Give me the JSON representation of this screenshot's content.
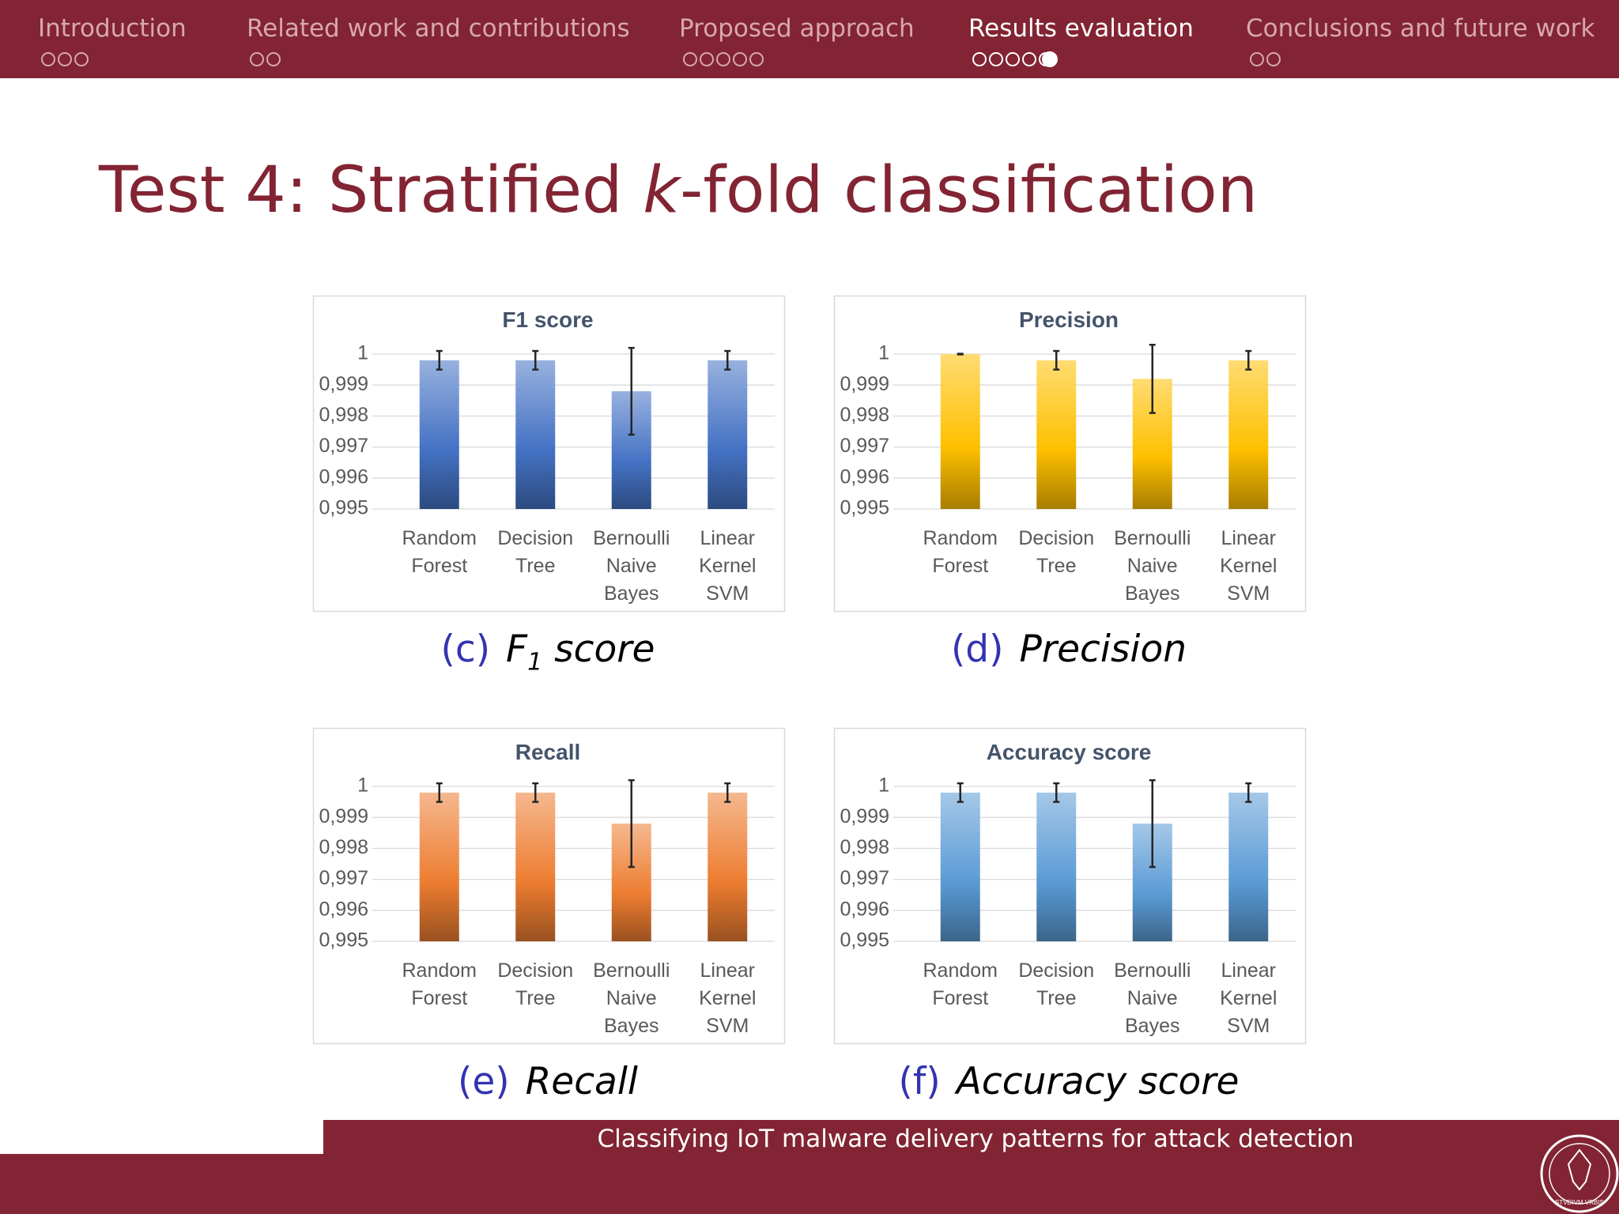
{
  "navigation": [
    "Introduction",
    "Related work and contributions",
    "Proposed approach",
    "Results evaluation",
    "Conclusions and future work"
  ],
  "slide_title": {
    "before": "Test 4: Stratified ",
    "italic": "k",
    "after": "-fold classification"
  },
  "chart_data": [
    {
      "type": "bar",
      "title": "F1 score",
      "categories": [
        "Random Forest",
        "Decision Tree",
        "Bernoulli Naive Bayes",
        "Linear Kernel SVM"
      ],
      "values": [
        0.9998,
        0.9998,
        0.9988,
        0.9998
      ],
      "errors": [
        0.0003,
        0.0003,
        0.0014,
        0.0003
      ],
      "color": "#4472c4",
      "ylim": [
        0.995,
        1
      ],
      "yticks": [
        {
          "value": 0.995,
          "label": "0,995"
        },
        {
          "value": 0.996,
          "label": "0,996"
        },
        {
          "value": 0.997,
          "label": "0,997"
        },
        {
          "value": 0.998,
          "label": "0,998"
        },
        {
          "value": 0.999,
          "label": "0,999"
        },
        1
      ],
      "grid": true
    },
    {
      "type": "bar",
      "title": "Precision",
      "categories": [
        "Random Forest",
        "Decision Tree",
        "Bernoulli Naive Bayes",
        "Linear Kernel SVM"
      ],
      "values": [
        1.0,
        0.9998,
        0.9992,
        0.9998
      ],
      "errors": [
        1e-05,
        0.0003,
        0.0011,
        0.0003
      ],
      "color": "#ffc000",
      "ylim": [
        0.995,
        1
      ],
      "yticks": [
        {
          "value": 0.995,
          "label": "0,995"
        },
        {
          "value": 0.996,
          "label": "0,996"
        },
        {
          "value": 0.997,
          "label": "0,997"
        },
        {
          "value": 0.998,
          "label": "0,998"
        },
        {
          "value": 0.999,
          "label": "0,999"
        },
        1
      ],
      "grid": true
    },
    {
      "type": "bar",
      "title": "Recall",
      "categories": [
        "Random Forest",
        "Decision Tree",
        "Bernoulli Naive Bayes",
        "Linear Kernel SVM"
      ],
      "values": [
        0.9998,
        0.9998,
        0.9988,
        0.9998
      ],
      "errors": [
        0.0003,
        0.0003,
        0.0014,
        0.0003
      ],
      "color": "#ed7d31",
      "ylim": [
        0.995,
        1
      ],
      "yticks": [
        {
          "value": 0.995,
          "label": "0,995"
        },
        {
          "value": 0.996,
          "label": "0,996"
        },
        {
          "value": 0.997,
          "label": "0,997"
        },
        {
          "value": 0.998,
          "label": "0,998"
        },
        {
          "value": 0.999,
          "label": "0,999"
        },
        1
      ],
      "grid": true
    },
    {
      "type": "bar",
      "title": "Accuracy score",
      "categories": [
        "Random Forest",
        "Decision Tree",
        "Bernoulli Naive Bayes",
        "Linear Kernel SVM"
      ],
      "values": [
        0.9998,
        0.9998,
        0.9988,
        0.9998
      ],
      "errors": [
        0.0003,
        0.0003,
        0.0014,
        0.0003
      ],
      "color": "#5b9bd5",
      "ylim": [
        0.995,
        1
      ],
      "yticks": [
        {
          "value": 0.995,
          "label": "0,995"
        },
        {
          "value": 0.996,
          "label": "0,996"
        },
        {
          "value": 0.997,
          "label": "0,997"
        },
        {
          "value": 0.998,
          "label": "0,998"
        },
        {
          "value": 0.999,
          "label": "0,999"
        },
        1
      ],
      "grid": true
    }
  ],
  "captions": [
    {
      "label": "(c)",
      "text": "F",
      "sub": "1",
      "rest": " score"
    },
    {
      "label": "(d)",
      "text": "Precision"
    },
    {
      "label": "(e)",
      "text": "Recall"
    },
    {
      "label": "(f)",
      "text": "Accuracy score"
    }
  ],
  "footer": "Classifying IoT malware delivery patterns for attack detection",
  "logo_text": "STVDIVM VRBIS"
}
